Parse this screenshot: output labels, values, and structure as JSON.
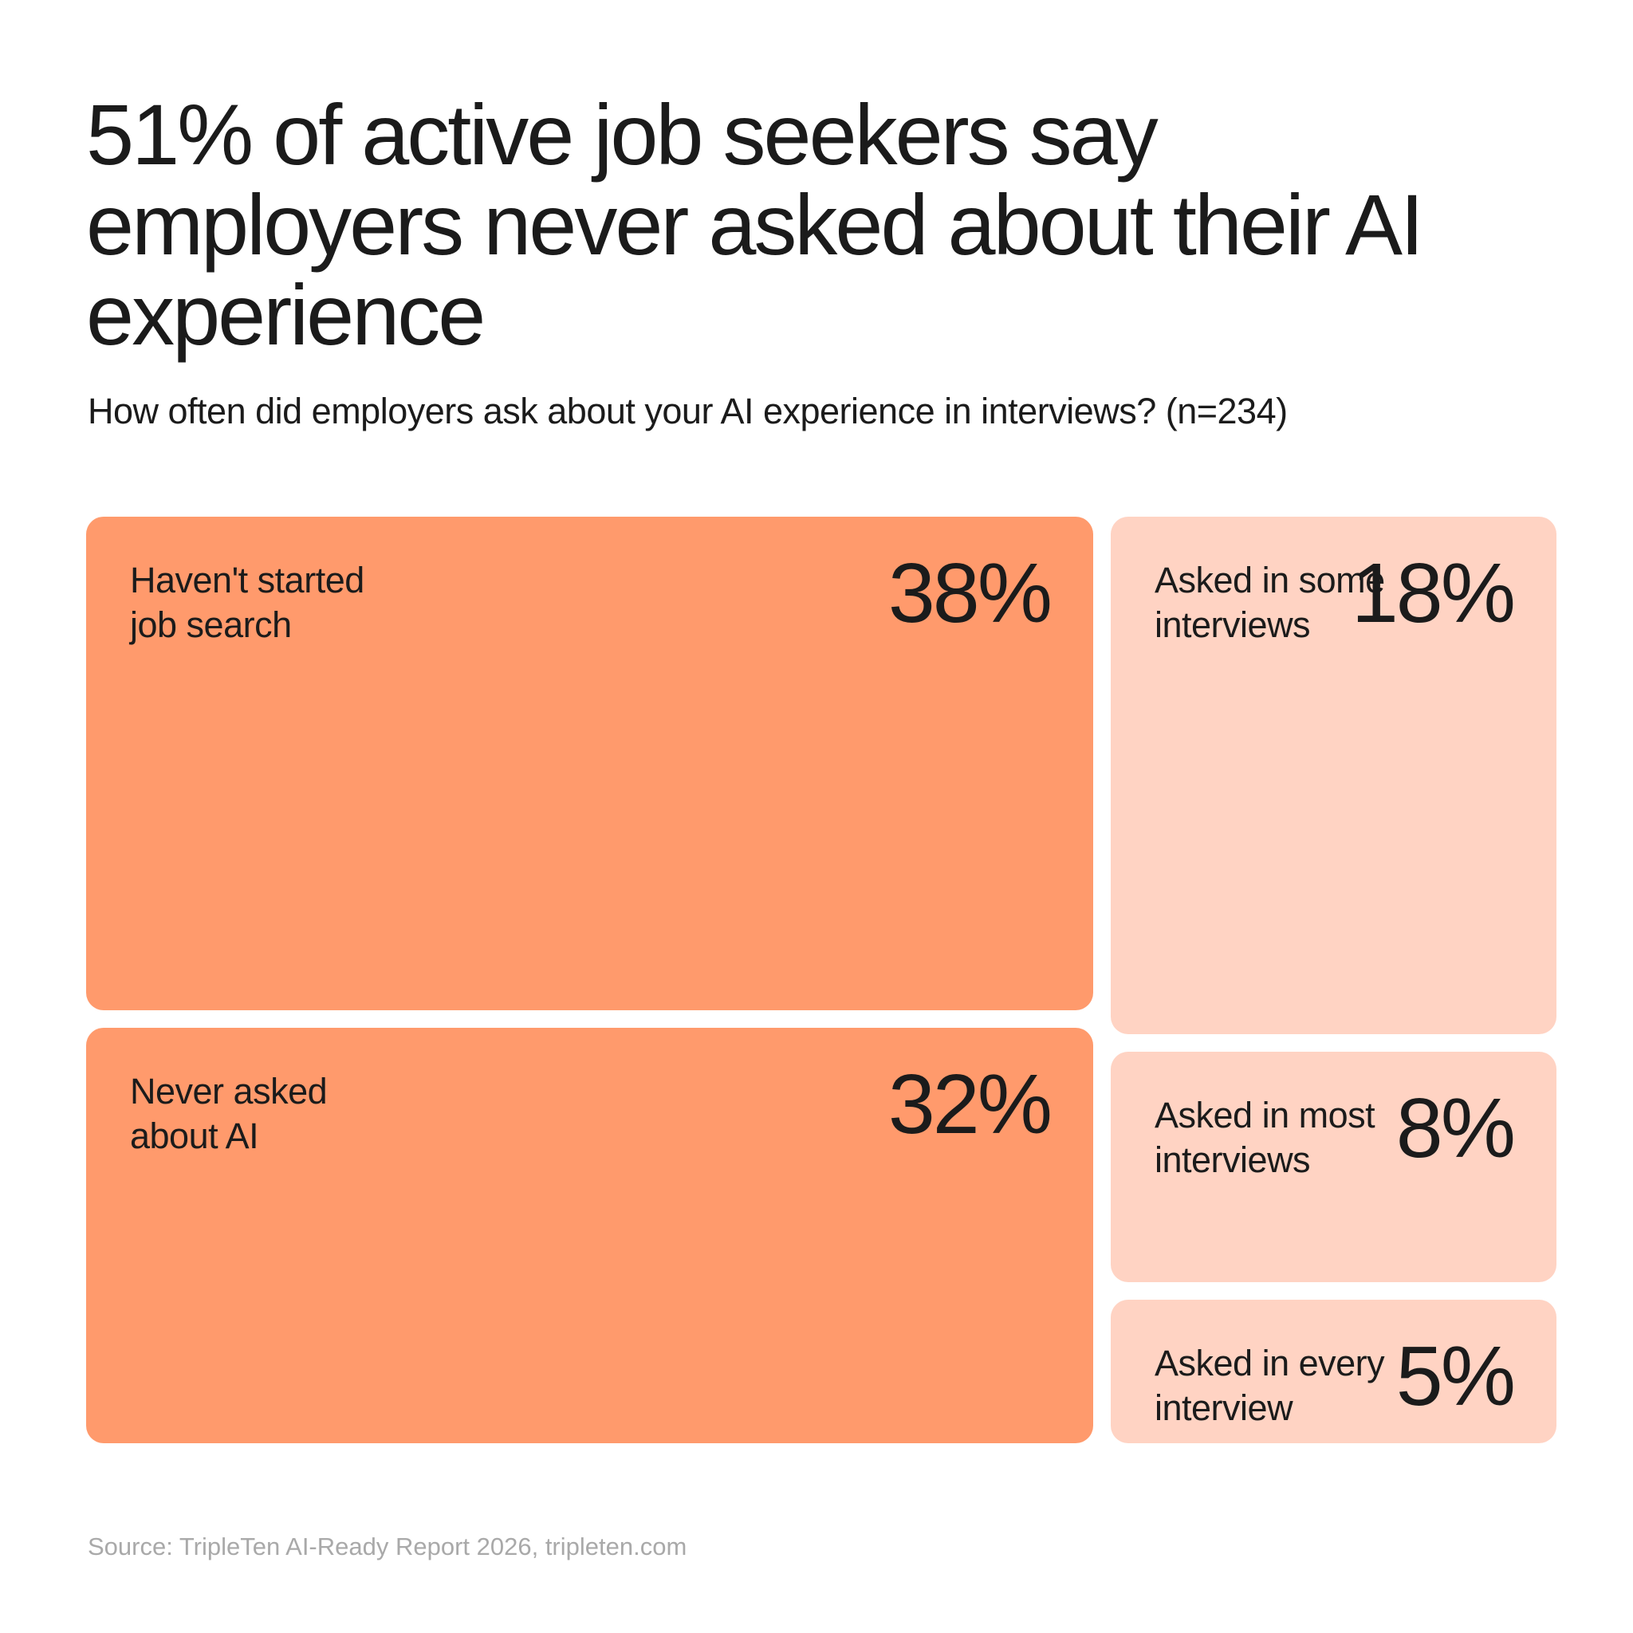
{
  "title": "51% of active job seekers say employers never asked about their AI experience",
  "subtitle": "How often did employers ask about your AI experience in interviews? (n=234)",
  "source": "Source: TripleTen AI-Ready Report 2026, tripleten.com",
  "colors": {
    "strong": "#ff9a6c",
    "light": "#ffd3c3",
    "text": "#1b1b1b",
    "source_text": "#a9a9a9"
  },
  "chart_data": {
    "type": "treemap",
    "categories": [
      "Haven't started job search",
      "Never asked about AI",
      "Asked in some interviews",
      "Asked in most interviews",
      "Asked in every interview"
    ],
    "values": [
      38,
      32,
      18,
      8,
      5
    ],
    "value_labels": [
      "38%",
      "32%",
      "18%",
      "8%",
      "5%"
    ],
    "label_lines": [
      [
        "Haven't started",
        "job search"
      ],
      [
        "Never asked",
        "about AI"
      ],
      [
        "Asked in some",
        "interviews"
      ],
      [
        "Asked in most",
        "interviews"
      ],
      [
        "Asked in every",
        "interview"
      ]
    ],
    "color_group": [
      "strong",
      "strong",
      "light",
      "light",
      "light"
    ],
    "unit": "%"
  }
}
